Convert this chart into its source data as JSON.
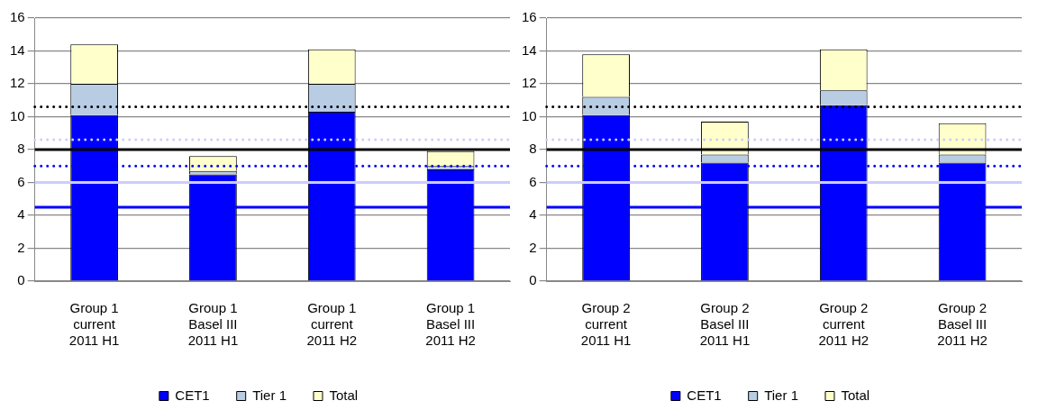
{
  "chart_data": [
    {
      "type": "bar",
      "stacked": true,
      "categories": [
        "Group 1\ncurrent\n2011 H1",
        "Group 1\nBasel III\n2011 H1",
        "Group 1\ncurrent\n2011 H2",
        "Group 1\nBasel III\n2011 H2"
      ],
      "series": [
        {
          "name": "CET1",
          "color": "#0000ff",
          "values": [
            10.1,
            6.5,
            10.3,
            6.8
          ]
        },
        {
          "name": "Tier 1",
          "color": "#b8cce4",
          "values": [
            1.9,
            0.2,
            1.7,
            0.2
          ]
        },
        {
          "name": "Total",
          "color": "#ffffcc",
          "values": [
            2.4,
            0.9,
            2.1,
            0.9
          ]
        }
      ],
      "ylim": [
        0,
        16
      ],
      "yticks": [
        0,
        2,
        4,
        6,
        8,
        10,
        12,
        14,
        16
      ],
      "grid": "y",
      "legend": "bottom",
      "ref_lines": [
        {
          "axis": "y",
          "value": 10.6,
          "color": "#000000",
          "line_style": "dotted"
        },
        {
          "axis": "y",
          "value": 8.6,
          "color": "#ccccff",
          "line_style": "dotted"
        },
        {
          "axis": "y",
          "value": 8,
          "color": "#000000",
          "line_style": "solid"
        },
        {
          "axis": "y",
          "value": 7,
          "color": "#0000ff",
          "line_style": "dotted"
        },
        {
          "axis": "y",
          "value": 6,
          "color": "#ccccff",
          "line_style": "solid"
        },
        {
          "axis": "y",
          "value": 4.5,
          "color": "#0000ff",
          "line_style": "solid"
        }
      ]
    },
    {
      "type": "bar",
      "stacked": true,
      "categories": [
        "Group 2\ncurrent\n2011 H1",
        "Group 2\nBasel III\n2011 H1",
        "Group 2\ncurrent\n2011 H2",
        "Group 2\nBasel III\n2011 H2"
      ],
      "series": [
        {
          "name": "CET1",
          "color": "#0000ff",
          "values": [
            10.1,
            7.2,
            10.7,
            7.2
          ]
        },
        {
          "name": "Tier 1",
          "color": "#b8cce4",
          "values": [
            1.1,
            0.5,
            0.9,
            0.5
          ]
        },
        {
          "name": "Total",
          "color": "#ffffcc",
          "values": [
            2.6,
            2.0,
            2.5,
            1.9
          ]
        }
      ],
      "ylim": [
        0,
        16
      ],
      "yticks": [
        0,
        2,
        4,
        6,
        8,
        10,
        12,
        14,
        16
      ],
      "grid": "y",
      "legend": "bottom",
      "ref_lines": [
        {
          "axis": "y",
          "value": 10.6,
          "color": "#000000",
          "line_style": "dotted"
        },
        {
          "axis": "y",
          "value": 8.6,
          "color": "#ccccff",
          "line_style": "dotted"
        },
        {
          "axis": "y",
          "value": 8,
          "color": "#000000",
          "line_style": "solid"
        },
        {
          "axis": "y",
          "value": 7,
          "color": "#0000ff",
          "line_style": "dotted"
        },
        {
          "axis": "y",
          "value": 6,
          "color": "#ccccff",
          "line_style": "solid"
        },
        {
          "axis": "y",
          "value": 4.5,
          "color": "#0000ff",
          "line_style": "solid"
        }
      ]
    }
  ]
}
